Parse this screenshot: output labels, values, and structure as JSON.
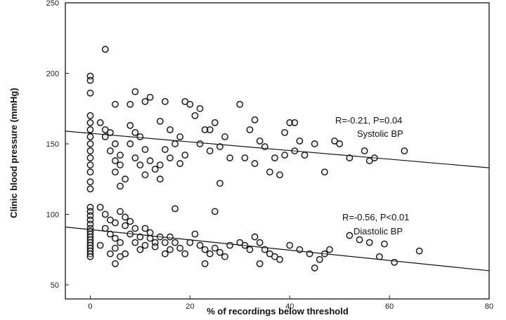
{
  "chart_data": {
    "type": "scatter",
    "title": "",
    "xlabel": "% of recordings below threshold",
    "ylabel": "Clinic blood pressure (mmHg)",
    "xlim": [
      -5,
      80
    ],
    "ylim": [
      40,
      250
    ],
    "x_ticks": [
      0,
      20,
      40,
      60,
      80
    ],
    "y_ticks": [
      50,
      100,
      150,
      200,
      250
    ],
    "annotations": [
      {
        "label": "R=-0.21, P=0.04",
        "target": "systolic"
      },
      {
        "label": "Systolic BP",
        "target": "systolic"
      },
      {
        "label": "R=-0.56, P<0.01",
        "target": "diastolic"
      },
      {
        "label": "Diastolic BP",
        "target": "diastolic"
      }
    ],
    "series": [
      {
        "group": "systolic",
        "fit": {
          "x": [
            -5,
            80
          ],
          "y": [
            159,
            133
          ]
        },
        "points": [
          [
            0,
            198
          ],
          [
            0,
            195
          ],
          [
            0,
            186
          ],
          [
            0,
            170
          ],
          [
            0,
            165
          ],
          [
            0,
            160
          ],
          [
            0,
            155
          ],
          [
            0,
            150
          ],
          [
            0,
            145
          ],
          [
            0,
            140
          ],
          [
            0,
            135
          ],
          [
            0,
            130
          ],
          [
            0,
            123
          ],
          [
            0,
            118
          ],
          [
            3,
            217
          ],
          [
            2,
            165
          ],
          [
            3,
            160
          ],
          [
            4,
            158
          ],
          [
            3,
            155
          ],
          [
            5,
            150
          ],
          [
            4,
            145
          ],
          [
            6,
            142
          ],
          [
            5,
            138
          ],
          [
            6,
            135
          ],
          [
            5,
            130
          ],
          [
            7,
            125
          ],
          [
            6,
            120
          ],
          [
            8,
            163
          ],
          [
            9,
            158
          ],
          [
            10,
            155
          ],
          [
            8,
            150
          ],
          [
            11,
            146
          ],
          [
            9,
            140
          ],
          [
            12,
            138
          ],
          [
            10,
            135
          ],
          [
            13,
            132
          ],
          [
            11,
            128
          ],
          [
            14,
            125
          ],
          [
            5,
            178
          ],
          [
            8,
            178
          ],
          [
            11,
            180
          ],
          [
            9,
            187
          ],
          [
            12,
            183
          ],
          [
            15,
            180
          ],
          [
            14,
            166
          ],
          [
            16,
            160
          ],
          [
            18,
            155
          ],
          [
            17,
            150
          ],
          [
            15,
            146
          ],
          [
            19,
            142
          ],
          [
            16,
            140
          ],
          [
            18,
            136
          ],
          [
            14,
            135
          ],
          [
            20,
            178
          ],
          [
            22,
            175
          ],
          [
            19,
            180
          ],
          [
            21,
            170
          ],
          [
            23,
            160
          ],
          [
            25,
            165
          ],
          [
            24,
            160
          ],
          [
            22,
            150
          ],
          [
            26,
            148
          ],
          [
            27,
            155
          ],
          [
            24,
            145
          ],
          [
            28,
            140
          ],
          [
            26,
            122
          ],
          [
            30,
            178
          ],
          [
            33,
            167
          ],
          [
            32,
            160
          ],
          [
            34,
            152
          ],
          [
            35,
            148
          ],
          [
            31,
            140
          ],
          [
            33,
            136
          ],
          [
            36,
            130
          ],
          [
            38,
            128
          ],
          [
            37,
            140
          ],
          [
            39,
            142
          ],
          [
            40,
            165
          ],
          [
            41,
            165
          ],
          [
            39,
            158
          ],
          [
            42,
            152
          ],
          [
            41,
            145
          ],
          [
            43,
            142
          ],
          [
            45,
            150
          ],
          [
            47,
            130
          ],
          [
            49,
            152
          ],
          [
            50,
            150
          ],
          [
            52,
            140
          ],
          [
            55,
            145
          ],
          [
            56,
            138
          ],
          [
            57,
            140
          ],
          [
            63,
            145
          ]
        ]
      },
      {
        "group": "diastolic",
        "fit": {
          "x": [
            -5,
            80
          ],
          "y": [
            91,
            60
          ]
        },
        "points": [
          [
            0,
            105
          ],
          [
            0,
            102
          ],
          [
            0,
            99
          ],
          [
            0,
            96
          ],
          [
            0,
            93
          ],
          [
            0,
            90
          ],
          [
            0,
            88
          ],
          [
            0,
            86
          ],
          [
            0,
            84
          ],
          [
            0,
            82
          ],
          [
            0,
            80
          ],
          [
            0,
            78
          ],
          [
            0,
            76
          ],
          [
            0,
            74
          ],
          [
            0,
            72
          ],
          [
            0,
            70
          ],
          [
            2,
            105
          ],
          [
            3,
            100
          ],
          [
            4,
            96
          ],
          [
            5,
            94
          ],
          [
            3,
            90
          ],
          [
            4,
            86
          ],
          [
            5,
            83
          ],
          [
            6,
            80
          ],
          [
            2,
            78
          ],
          [
            5,
            76
          ],
          [
            4,
            72
          ],
          [
            6,
            70
          ],
          [
            5,
            65
          ],
          [
            6,
            102
          ],
          [
            7,
            98
          ],
          [
            8,
            95
          ],
          [
            7,
            92
          ],
          [
            9,
            90
          ],
          [
            8,
            86
          ],
          [
            10,
            84
          ],
          [
            9,
            80
          ],
          [
            11,
            78
          ],
          [
            10,
            75
          ],
          [
            12,
            83
          ],
          [
            13,
            80
          ],
          [
            11,
            90
          ],
          [
            12,
            87
          ],
          [
            7,
            72
          ],
          [
            14,
            84
          ],
          [
            15,
            80
          ],
          [
            13,
            77
          ],
          [
            16,
            75
          ],
          [
            15,
            72
          ],
          [
            17,
            80
          ],
          [
            18,
            76
          ],
          [
            16,
            84
          ],
          [
            17,
            104
          ],
          [
            19,
            72
          ],
          [
            20,
            80
          ],
          [
            21,
            86
          ],
          [
            22,
            78
          ],
          [
            23,
            75
          ],
          [
            24,
            72
          ],
          [
            25,
            76
          ],
          [
            26,
            73
          ],
          [
            27,
            70
          ],
          [
            28,
            78
          ],
          [
            25,
            102
          ],
          [
            23,
            65
          ],
          [
            30,
            80
          ],
          [
            31,
            78
          ],
          [
            32,
            75
          ],
          [
            33,
            84
          ],
          [
            34,
            80
          ],
          [
            35,
            75
          ],
          [
            36,
            72
          ],
          [
            37,
            70
          ],
          [
            38,
            68
          ],
          [
            34,
            65
          ],
          [
            40,
            78
          ],
          [
            42,
            75
          ],
          [
            44,
            72
          ],
          [
            46,
            68
          ],
          [
            47,
            72
          ],
          [
            48,
            75
          ],
          [
            45,
            62
          ],
          [
            52,
            85
          ],
          [
            54,
            82
          ],
          [
            58,
            70
          ],
          [
            61,
            66
          ],
          [
            66,
            74
          ],
          [
            56,
            80
          ],
          [
            59,
            79
          ]
        ]
      }
    ]
  }
}
